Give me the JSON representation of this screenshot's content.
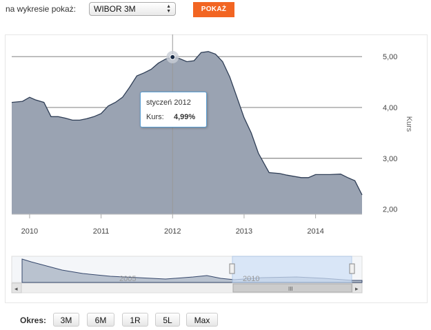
{
  "controls": {
    "show_label": "na wykresie pokaż:",
    "selected": "WIBOR 3M",
    "show_button": "POKAŻ"
  },
  "tooltip": {
    "title": "styczeń 2012",
    "key": "Kurs:",
    "value": "4,99%"
  },
  "period": {
    "label": "Okres:",
    "buttons": [
      "3M",
      "6M",
      "1R",
      "5L",
      "Max"
    ]
  },
  "navigator": {
    "labels": [
      "2005",
      "2010"
    ]
  },
  "colors": {
    "area_fill": "#9aa3b2",
    "area_line": "#2e3d55",
    "accent": "#f26522",
    "nav_selection": "#cfe0f7"
  },
  "chart_data": {
    "type": "area",
    "ylabel": "Kurs",
    "xlim": [
      2009.75,
      2014.65
    ],
    "ylim": [
      1.9,
      5.3
    ],
    "yticks": [
      2,
      3,
      4,
      5
    ],
    "ytick_labels": [
      "2,00",
      "3,00",
      "4,00",
      "5,00"
    ],
    "xticks": [
      2010,
      2011,
      2012,
      2013,
      2014
    ],
    "xtick_labels": [
      "2010",
      "2011",
      "2012",
      "2013",
      "2014"
    ],
    "grid": true,
    "highlight": {
      "x": 2012.0,
      "y": 4.99
    },
    "x": [
      2009.75,
      2009.9,
      2010.0,
      2010.08,
      2010.2,
      2010.3,
      2010.4,
      2010.5,
      2010.6,
      2010.7,
      2010.8,
      2010.9,
      2011.0,
      2011.1,
      2011.2,
      2011.3,
      2011.4,
      2011.5,
      2011.6,
      2011.7,
      2011.8,
      2011.9,
      2012.0,
      2012.1,
      2012.2,
      2012.3,
      2012.4,
      2012.5,
      2012.6,
      2012.7,
      2012.8,
      2012.9,
      2013.0,
      2013.1,
      2013.2,
      2013.35,
      2013.5,
      2013.6,
      2013.8,
      2013.9,
      2014.0,
      2014.2,
      2014.35,
      2014.45,
      2014.55,
      2014.65
    ],
    "y": [
      4.1,
      4.12,
      4.2,
      4.15,
      4.1,
      3.82,
      3.82,
      3.79,
      3.75,
      3.75,
      3.78,
      3.82,
      3.88,
      4.03,
      4.1,
      4.2,
      4.4,
      4.62,
      4.68,
      4.75,
      4.87,
      4.95,
      4.99,
      4.96,
      4.9,
      4.92,
      5.08,
      5.1,
      5.05,
      4.9,
      4.6,
      4.2,
      3.8,
      3.5,
      3.1,
      2.72,
      2.7,
      2.67,
      2.62,
      2.62,
      2.68,
      2.68,
      2.69,
      2.62,
      2.56,
      2.28
    ]
  }
}
